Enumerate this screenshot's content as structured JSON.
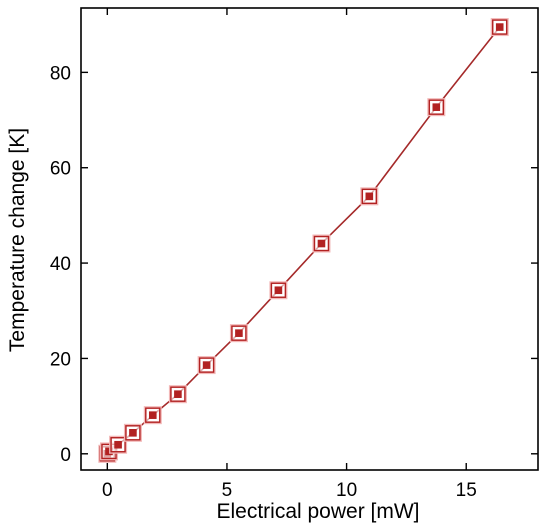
{
  "chart_data": {
    "type": "line",
    "title": "",
    "xlabel": "Electrical power [mW]",
    "ylabel": "Temperature change [K]",
    "xlim": [
      -1.1,
      18.0
    ],
    "ylim": [
      -3.4,
      93.5
    ],
    "xticks": [
      0,
      5,
      10,
      15
    ],
    "yticks": [
      0,
      20,
      40,
      60,
      80
    ],
    "grid": false,
    "legend": "none",
    "series": [
      {
        "marker": "square-in-square",
        "color": "#b22222",
        "line_color": "#a52a2a",
        "x": [
          0.0,
          0.07,
          0.45,
          1.07,
          1.9,
          2.95,
          4.15,
          5.5,
          7.15,
          8.95,
          10.95,
          13.75,
          16.4
        ],
        "y": [
          0.0,
          0.5,
          1.9,
          4.4,
          8.1,
          12.5,
          18.6,
          25.3,
          34.3,
          44.1,
          54.0,
          72.7,
          89.5
        ]
      }
    ]
  }
}
